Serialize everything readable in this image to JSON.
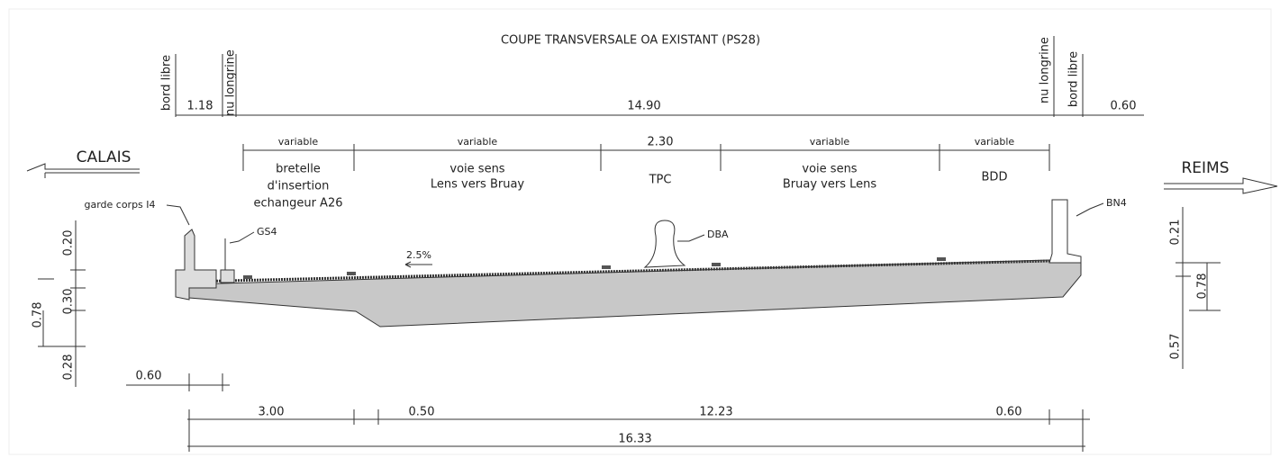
{
  "title": "COUPE TRANSVERSALE OA EXISTANT (PS28)",
  "vertical_labels": {
    "left": [
      "bord libre",
      "nu longrine"
    ],
    "right": [
      "nu longrine",
      "bord libre"
    ]
  },
  "top_dimensions": [
    "1.18",
    "14.90",
    "0.60"
  ],
  "lane_widths": [
    "variable",
    "variable",
    "2.30",
    "variable",
    "variable"
  ],
  "lanes": [
    [
      "bretelle",
      "d'insertion",
      "echangeur A26"
    ],
    [
      "voie sens",
      "Lens vers Bruay"
    ],
    [
      "TPC"
    ],
    [
      "voie sens",
      "Bruay vers Lens"
    ],
    [
      "BDD"
    ]
  ],
  "directions": {
    "left": "CALAIS",
    "right": "REIMS"
  },
  "callouts": {
    "guardrail": "garde corps I4",
    "gs4": "GS4",
    "dba": "DBA",
    "bn4": "BN4",
    "slope": "2.5%"
  },
  "left_dimensions": [
    "0.20",
    "0.78",
    "0.30",
    "0.28"
  ],
  "right_dimensions": [
    "0.21",
    "0.78",
    "0.57"
  ],
  "cantilever": "0.60",
  "bottom_dimensions": [
    "3.00",
    "0.50",
    "12.23",
    "0.60"
  ],
  "total": "16.33"
}
